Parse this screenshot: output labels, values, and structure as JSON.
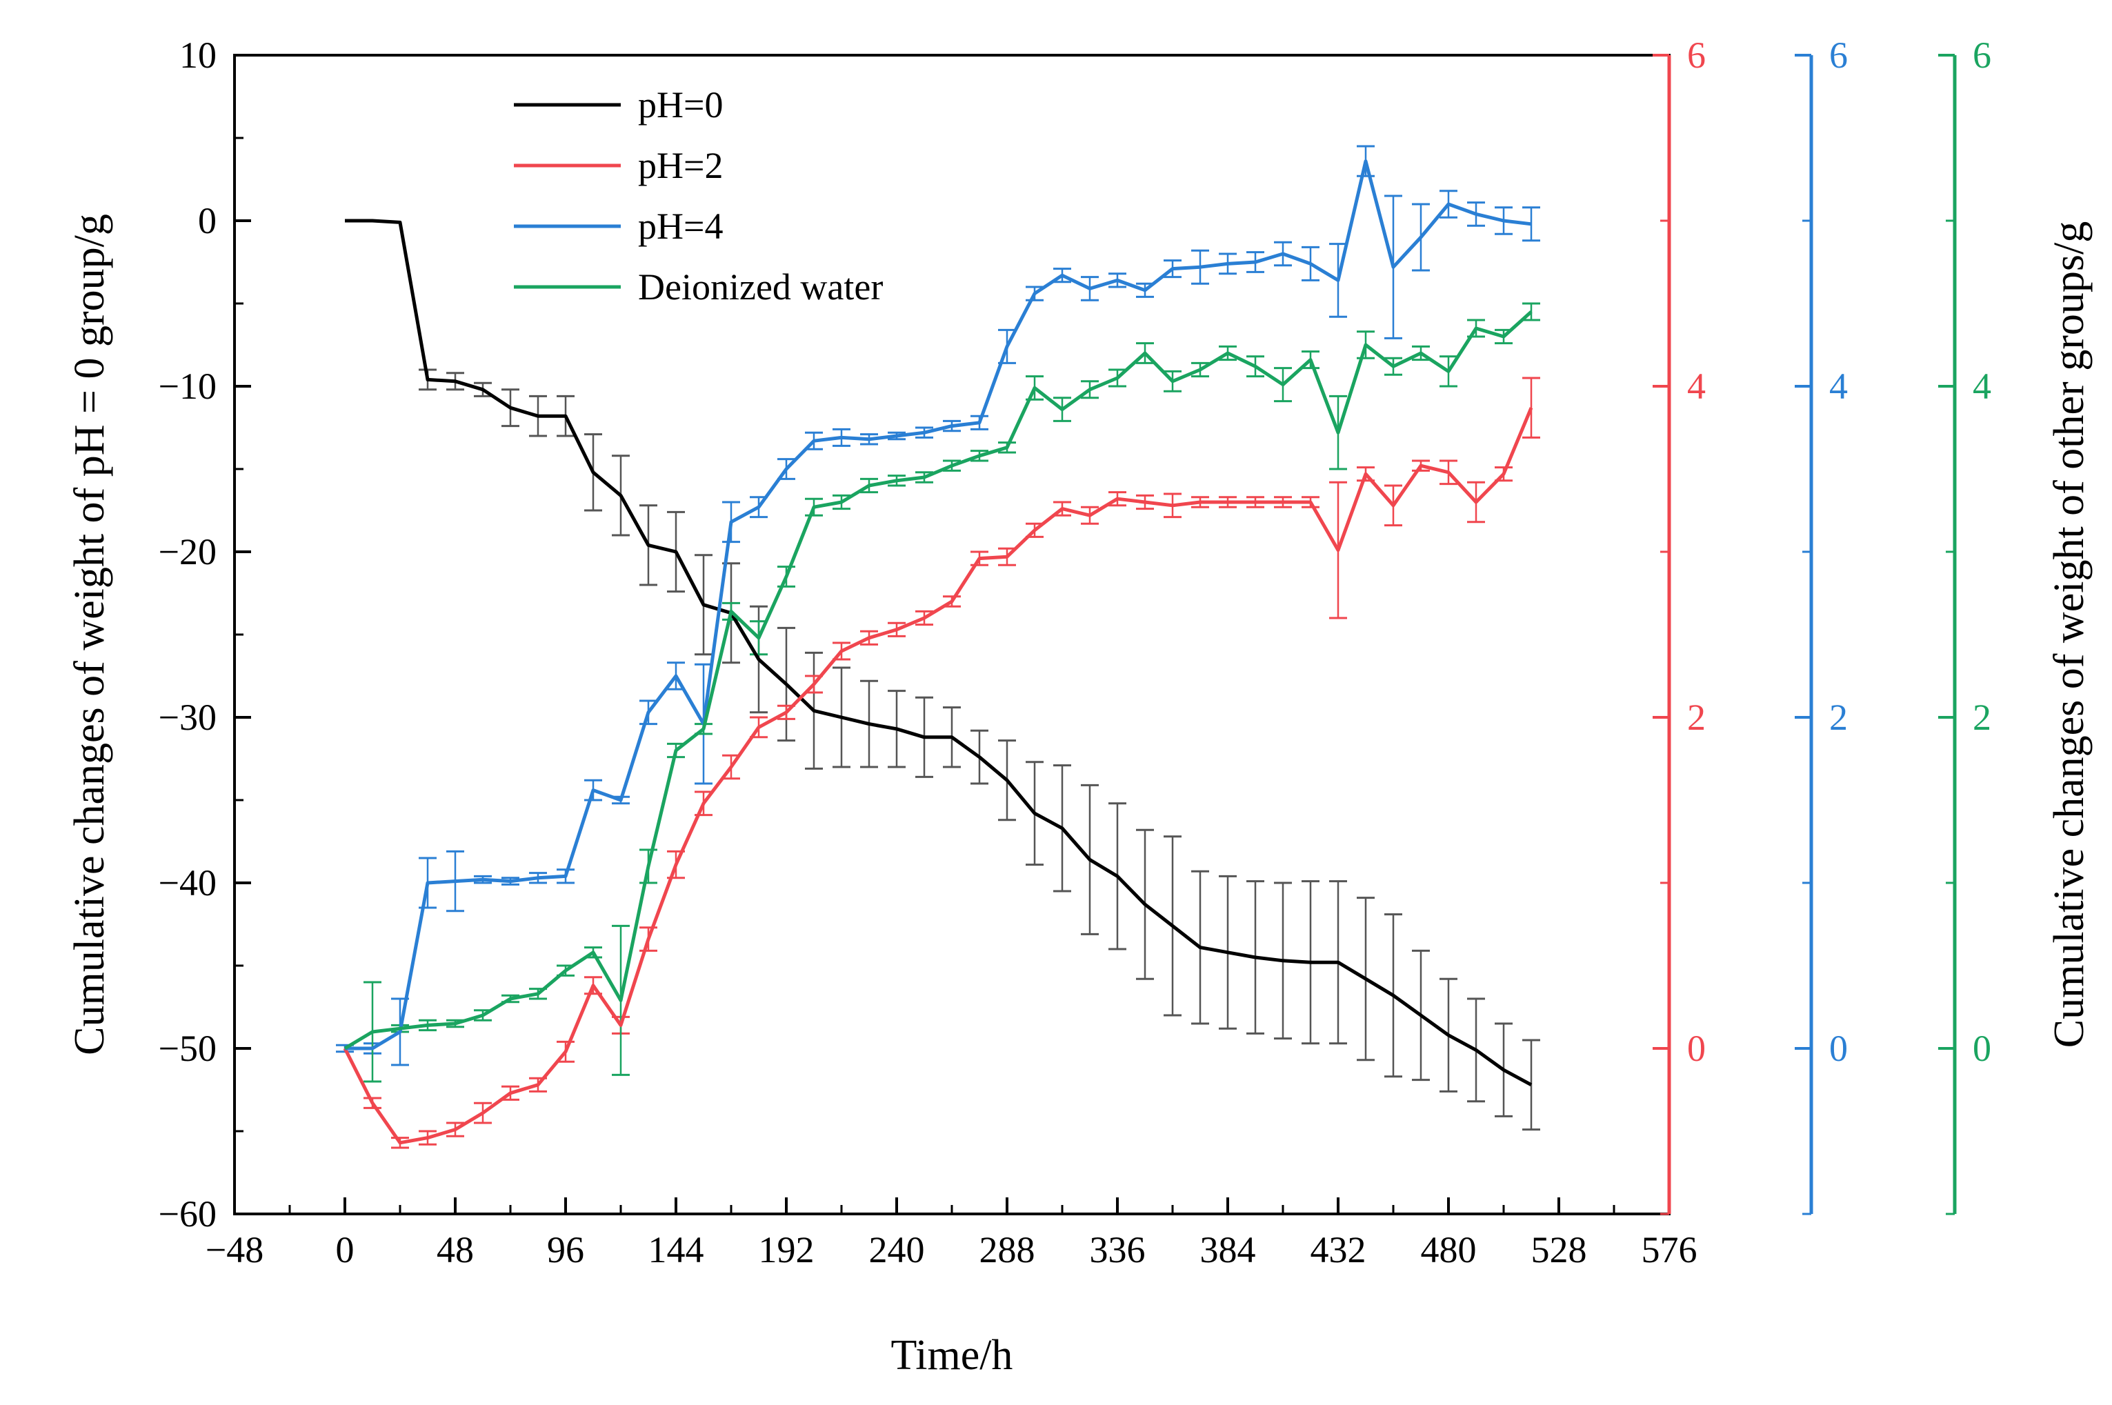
{
  "chart_data": {
    "type": "line",
    "xlabel": "Time/h",
    "ylabel_left": "Cumulative changes of weight of pH = 0 group/g",
    "ylabel_right": "Cumulative changes of weight of other groups/g",
    "x_range": [
      -48,
      576
    ],
    "x_ticks": [
      -48,
      0,
      48,
      96,
      144,
      192,
      240,
      288,
      336,
      384,
      432,
      480,
      528,
      576
    ],
    "x_tick_labels": [
      "−48",
      "0",
      "48",
      "96",
      "144",
      "192",
      "240",
      "288",
      "336",
      "384",
      "432",
      "480",
      "528",
      "576"
    ],
    "axes": [
      {
        "id": "left",
        "range": [
          -60,
          10
        ],
        "ticks": [
          10,
          0,
          -10,
          -20,
          -30,
          -40,
          -50,
          -60
        ],
        "tick_labels": [
          "10",
          "0",
          "−10",
          "−20",
          "−30",
          "−40",
          "−50",
          "−60"
        ],
        "color": "#000000"
      },
      {
        "id": "red",
        "range": [
          -1,
          6
        ],
        "ticks": [
          6,
          4,
          2,
          0
        ],
        "tick_labels": [
          "6",
          "4",
          "2",
          "0"
        ],
        "color": "#f0464e"
      },
      {
        "id": "blue",
        "range": [
          -1,
          6
        ],
        "ticks": [
          6,
          4,
          2,
          0
        ],
        "tick_labels": [
          "6",
          "4",
          "2",
          "0"
        ],
        "color": "#2a7fd4"
      },
      {
        "id": "green",
        "range": [
          -1,
          6
        ],
        "ticks": [
          6,
          4,
          2,
          0
        ],
        "tick_labels": [
          "6",
          "4",
          "2",
          "0"
        ],
        "color": "#1aa460"
      }
    ],
    "legend_position": "top-left",
    "series": [
      {
        "name": "pH=0",
        "axis": "left",
        "color": "#000000",
        "x": [
          0,
          12,
          24,
          36,
          48,
          60,
          72,
          84,
          96,
          108,
          120,
          132,
          144,
          156,
          168,
          180,
          192,
          204,
          216,
          228,
          240,
          252,
          264,
          276,
          288,
          300,
          312,
          324,
          336,
          348,
          360,
          372,
          384,
          396,
          408,
          420,
          432,
          444,
          456,
          468,
          480,
          492,
          504,
          516
        ],
        "y": [
          0,
          0,
          -0.1,
          -9.6,
          -9.7,
          -10.2,
          -11.3,
          -11.8,
          -11.8,
          -15.2,
          -16.6,
          -19.6,
          -20,
          -23.2,
          -23.7,
          -26.5,
          -28,
          -29.6,
          -30,
          -30.4,
          -30.7,
          -31.2,
          -31.2,
          -32.4,
          -33.8,
          -35.8,
          -36.7,
          -38.6,
          -39.6,
          -41.3,
          -42.6,
          -43.9,
          -44.2,
          -44.5,
          -44.7,
          -44.8,
          -44.8,
          -45.8,
          -46.8,
          -48,
          -49.2,
          -50.1,
          -51.3,
          -52.2
        ],
        "err": [
          0,
          0,
          0,
          0.6,
          0.5,
          0.4,
          1.1,
          1.2,
          1.2,
          2.3,
          2.4,
          2.4,
          2.4,
          3,
          3,
          3.2,
          3.4,
          3.5,
          3,
          2.6,
          2.3,
          2.4,
          1.8,
          1.6,
          2.4,
          3.1,
          3.8,
          4.5,
          4.4,
          4.5,
          5.4,
          4.6,
          4.6,
          4.6,
          4.7,
          4.9,
          4.9,
          4.9,
          4.9,
          3.9,
          3.4,
          3.1,
          2.8,
          2.7
        ]
      },
      {
        "name": "pH=2",
        "axis": "red",
        "color": "#f0464e",
        "x": [
          0,
          12,
          24,
          36,
          48,
          60,
          72,
          84,
          96,
          108,
          120,
          132,
          144,
          156,
          168,
          180,
          192,
          204,
          216,
          228,
          240,
          252,
          264,
          276,
          288,
          300,
          312,
          324,
          336,
          348,
          360,
          372,
          384,
          396,
          408,
          420,
          432,
          444,
          456,
          468,
          480,
          492,
          504,
          516
        ],
        "y": [
          0,
          -0.33,
          -0.57,
          -0.54,
          -0.49,
          -0.39,
          -0.27,
          -0.22,
          -0.02,
          0.38,
          0.14,
          0.66,
          1.11,
          1.48,
          1.7,
          1.94,
          2.03,
          2.2,
          2.4,
          2.48,
          2.53,
          2.6,
          2.7,
          2.96,
          2.97,
          3.13,
          3.26,
          3.22,
          3.32,
          3.3,
          3.28,
          3.3,
          3.3,
          3.3,
          3.3,
          3.3,
          3.01,
          3.47,
          3.28,
          3.52,
          3.48,
          3.3,
          3.47,
          3.87
        ],
        "err": [
          0,
          0.03,
          0.03,
          0.04,
          0.04,
          0.06,
          0.04,
          0.04,
          0.06,
          0.05,
          0.05,
          0.07,
          0.08,
          0.07,
          0.07,
          0.06,
          0.04,
          0.05,
          0.05,
          0.04,
          0.04,
          0.04,
          0.03,
          0.04,
          0.05,
          0.04,
          0.04,
          0.05,
          0.04,
          0.04,
          0.07,
          0.03,
          0.03,
          0.03,
          0.03,
          0.03,
          0.41,
          0.04,
          0.12,
          0.03,
          0.07,
          0.12,
          0.04,
          0.18
        ]
      },
      {
        "name": "pH=4",
        "axis": "blue",
        "color": "#2a7fd4",
        "x": [
          0,
          12,
          24,
          36,
          48,
          60,
          72,
          84,
          96,
          108,
          120,
          132,
          144,
          156,
          168,
          180,
          192,
          204,
          216,
          228,
          240,
          252,
          264,
          276,
          288,
          300,
          312,
          324,
          336,
          348,
          360,
          372,
          384,
          396,
          408,
          420,
          432,
          444,
          456,
          468,
          480,
          492,
          504,
          516
        ],
        "y": [
          0,
          0,
          0.1,
          1,
          1.01,
          1.02,
          1.01,
          1.03,
          1.04,
          1.56,
          1.5,
          2.03,
          2.25,
          1.96,
          3.18,
          3.27,
          3.5,
          3.67,
          3.69,
          3.68,
          3.7,
          3.72,
          3.76,
          3.78,
          4.24,
          4.56,
          4.67,
          4.59,
          4.64,
          4.58,
          4.71,
          4.72,
          4.74,
          4.75,
          4.8,
          4.74,
          4.64,
          5.36,
          4.72,
          4.9,
          5.1,
          5.04,
          5,
          4.98
        ],
        "err": [
          0.02,
          0.03,
          0.2,
          0.15,
          0.18,
          0.02,
          0.02,
          0.03,
          0.04,
          0.06,
          0.02,
          0.07,
          0.08,
          0.36,
          0.12,
          0.06,
          0.06,
          0.05,
          0.05,
          0.03,
          0.02,
          0.03,
          0.03,
          0.04,
          0.1,
          0.04,
          0.04,
          0.07,
          0.04,
          0.04,
          0.05,
          0.1,
          0.06,
          0.06,
          0.07,
          0.1,
          0.22,
          0.09,
          0.43,
          0.2,
          0.08,
          0.07,
          0.08,
          0.1
        ]
      },
      {
        "name": "Deionized water",
        "axis": "green",
        "color": "#1aa460",
        "x": [
          0,
          12,
          24,
          36,
          48,
          60,
          72,
          84,
          96,
          108,
          120,
          132,
          144,
          156,
          168,
          180,
          192,
          204,
          216,
          228,
          240,
          252,
          264,
          276,
          288,
          300,
          312,
          324,
          336,
          348,
          360,
          372,
          384,
          396,
          408,
          420,
          432,
          444,
          456,
          468,
          480,
          492,
          504,
          516
        ],
        "y": [
          0,
          0.1,
          0.12,
          0.14,
          0.15,
          0.2,
          0.3,
          0.33,
          0.47,
          0.58,
          0.29,
          1.1,
          1.8,
          1.93,
          2.64,
          2.48,
          2.85,
          3.27,
          3.3,
          3.4,
          3.43,
          3.45,
          3.52,
          3.58,
          3.63,
          3.99,
          3.86,
          3.98,
          4.05,
          4.2,
          4.03,
          4.1,
          4.2,
          4.12,
          4.01,
          4.16,
          3.72,
          4.25,
          4.12,
          4.2,
          4.09,
          4.35,
          4.3,
          4.45
        ]
      }
    ],
    "green_err": [
      0,
      0.3,
      0.02,
      0.03,
      0.02,
      0.03,
      0.02,
      0.03,
      0.03,
      0.03,
      0.45,
      0.1,
      0.04,
      0.03,
      0.05,
      0.1,
      0.06,
      0.05,
      0.04,
      0.04,
      0.03,
      0.03,
      0.03,
      0.03,
      0.03,
      0.07,
      0.07,
      0.05,
      0.05,
      0.06,
      0.06,
      0.04,
      0.04,
      0.06,
      0.1,
      0.05,
      0.22,
      0.08,
      0.05,
      0.04,
      0.09,
      0.05,
      0.04,
      0.05
    ]
  }
}
